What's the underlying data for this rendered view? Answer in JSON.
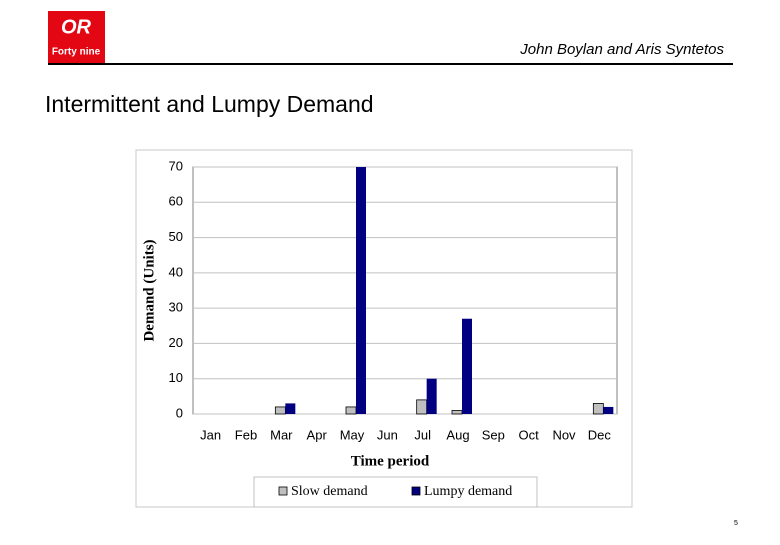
{
  "logo": {
    "mark": "OR",
    "caption": "Forty nine"
  },
  "header": {
    "authors": "John Boylan and Aris Syntetos",
    "title": "Intermittent and Lumpy Demand"
  },
  "page_number": "5",
  "chart_data": {
    "type": "bar",
    "x_label": "Time period",
    "y_label": "Demand (Units)",
    "categories": [
      "Jan",
      "Feb",
      "Mar",
      "Apr",
      "May",
      "Jun",
      "Jul",
      "Aug",
      "Sep",
      "Oct",
      "Nov",
      "Dec"
    ],
    "series": [
      {
        "name": "Slow demand",
        "color": "#c0c0c0",
        "values": [
          0,
          0,
          2,
          0,
          2,
          0,
          4,
          1,
          0,
          0,
          0,
          3
        ]
      },
      {
        "name": "Lumpy demand",
        "color": "#000080",
        "values": [
          0,
          0,
          3,
          0,
          70,
          0,
          10,
          27,
          0,
          0,
          0,
          2
        ]
      }
    ],
    "ylim": [
      0,
      70
    ],
    "yticks": [
      0,
      10,
      20,
      30,
      40,
      50,
      60,
      70
    ],
    "grid": true,
    "legend": "bottom"
  }
}
